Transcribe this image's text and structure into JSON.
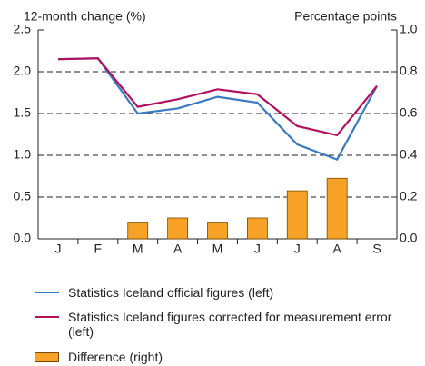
{
  "chart_data": {
    "type": "combo",
    "y_label": "12-month change (%)",
    "y2_label": "Percentage points",
    "categories": [
      "J",
      "F",
      "M",
      "A",
      "M",
      "J",
      "J",
      "A",
      "S"
    ],
    "series": [
      {
        "name": "Statistics Iceland official figures (left)",
        "type": "line",
        "color": "#3a7bbf",
        "values": [
          2.15,
          2.16,
          1.5,
          1.56,
          1.7,
          1.63,
          1.13,
          0.95,
          1.83
        ]
      },
      {
        "name": "Statistics Iceland figures corrected for measurement error (left)",
        "type": "line",
        "color": "#b0125e",
        "values": [
          2.15,
          2.16,
          1.58,
          1.67,
          1.79,
          1.73,
          1.35,
          1.24,
          1.83
        ]
      },
      {
        "name": "Difference (right)",
        "type": "bar",
        "axis": "y2",
        "color": "#f7a226",
        "values": [
          0,
          0,
          0.08,
          0.1,
          0.08,
          0.1,
          0.23,
          0.29,
          0
        ]
      }
    ],
    "ylim": [
      0,
      2.5
    ],
    "yticks": [
      {
        "value": 0,
        "label": "0.0"
      },
      0.5,
      {
        "value": 1,
        "label": "1.0"
      },
      1.5,
      {
        "value": 2,
        "label": "2.0"
      },
      2.5
    ],
    "y2lim": [
      0,
      1
    ],
    "y2ticks": [
      {
        "value": 0,
        "label": "0.0"
      },
      0.2,
      0.4,
      0.6,
      0.8,
      {
        "value": 1,
        "label": "1.0"
      }
    ],
    "grid": true
  }
}
